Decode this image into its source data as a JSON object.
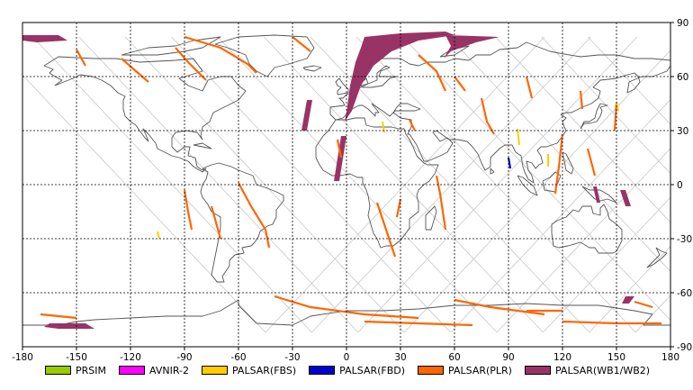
{
  "map": {
    "lon_ticks": [
      "-180",
      "-150",
      "-120",
      "-90",
      "-60",
      "-30",
      "0",
      "30",
      "60",
      "90",
      "120",
      "150",
      "180"
    ],
    "lat_ticks": [
      "90",
      "60",
      "30",
      "0",
      "-30",
      "-60",
      "-90"
    ],
    "grid": "dashed",
    "lon_range": [
      -180,
      180
    ],
    "lat_range": [
      -90,
      90
    ]
  },
  "legend": [
    {
      "label": "PRSIM",
      "color": "#99cc00"
    },
    {
      "label": "AVNIR-2",
      "color": "#ff00ff"
    },
    {
      "label": "PALSAR(FBS)",
      "color": "#ffcc00"
    },
    {
      "label": "PALSAR(FBD)",
      "color": "#0000cc"
    },
    {
      "label": "PALSAR(PLR)",
      "color": "#ff6600"
    },
    {
      "label": "PALSAR(WB1/WB2)",
      "color": "#993366"
    }
  ],
  "colors": {
    "coastline": "#555555",
    "orbit": "#c8c8c8",
    "grid": "#000000"
  }
}
